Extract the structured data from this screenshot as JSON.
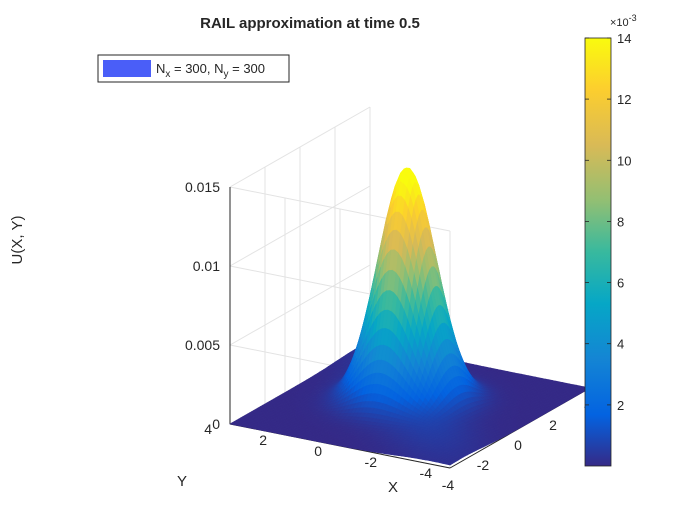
{
  "chart_data": {
    "type": "surface",
    "title": "RAIL approximation at time 0.5",
    "xlabel": "X",
    "ylabel": "Y",
    "zlabel": "U(X, Y)",
    "xlim": [
      -4,
      4
    ],
    "ylim": [
      -4,
      4
    ],
    "zlim": [
      0,
      0.015
    ],
    "x_ticks": [
      "-4",
      "-2",
      "0",
      "2",
      "4"
    ],
    "y_ticks": [
      "-4",
      "-2",
      "0",
      "2",
      "4"
    ],
    "z_ticks": [
      "0",
      "0.005",
      "0.01",
      "0.015"
    ],
    "surface": {
      "description_function": "gaussian-like peak",
      "peak_value": 0.0139,
      "peak_x": 0.3,
      "peak_y": 0.3,
      "sigma_x": 0.9,
      "sigma_y": 0.9
    },
    "legend": {
      "position": "top-left",
      "entry": {
        "color": "#4a5ef8",
        "parts": [
          {
            "text": "N",
            "sub": "x",
            "rest": " = 300, "
          },
          {
            "text": "N",
            "sub": "y",
            "rest": " = 300"
          }
        ]
      }
    },
    "colorbar": {
      "exponent_label": "×10",
      "exponent": "-3",
      "range": [
        0.0001,
        14
      ],
      "ticks": [
        "2",
        "4",
        "6",
        "8",
        "10",
        "12",
        "14"
      ],
      "colormap": "parula"
    },
    "grid": true
  }
}
